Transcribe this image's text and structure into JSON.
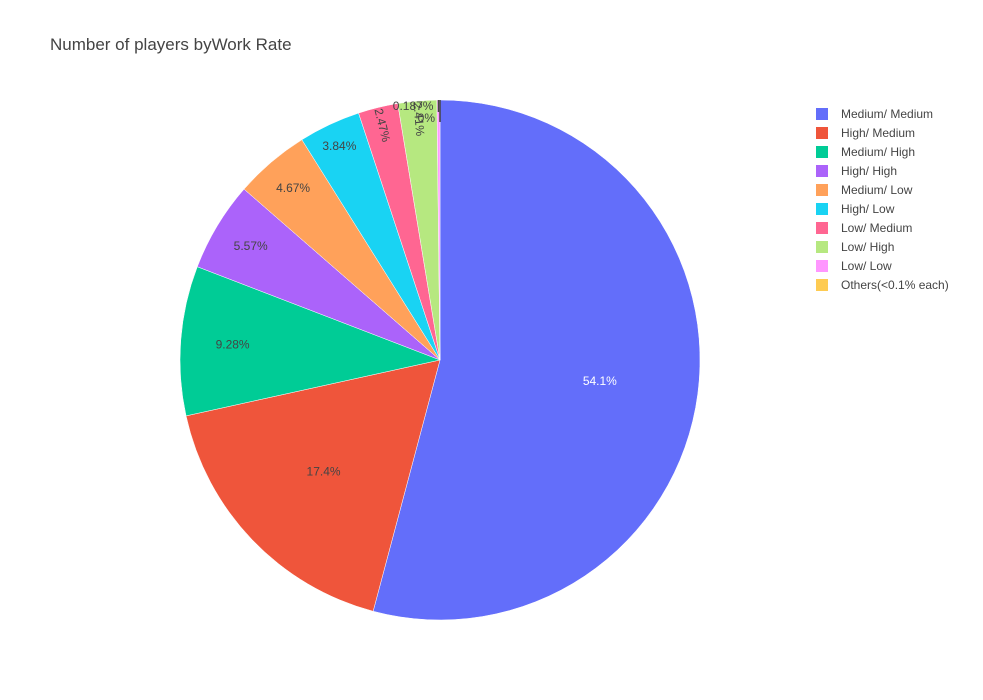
{
  "chart_data": {
    "type": "pie",
    "title": "Number of players byWork Rate",
    "labels": [
      "Medium/ Medium",
      "High/ Medium",
      "Medium/ High",
      "High/ High",
      "Medium/ Low",
      "High/ Low",
      "Low/ Medium",
      "Low/ High",
      "Low/ Low",
      "Others(<0.1% each)"
    ],
    "values": [
      54.1,
      17.4,
      9.28,
      5.57,
      4.67,
      3.84,
      2.47,
      2.41,
      0.187,
      0.0
    ],
    "text_labels": [
      "54.1%",
      "17.4%",
      "9.28%",
      "5.57%",
      "4.67%",
      "3.84%",
      "2.47%",
      "2.41%",
      "0.187%",
      "0%"
    ],
    "colors": [
      "#636efa",
      "#EF553B",
      "#00cc96",
      "#ab63fa",
      "#FFA15A",
      "#19d3f3",
      "#FF6692",
      "#B6E880",
      "#FF97FF",
      "#FECB52"
    ],
    "legend_position": "top-right",
    "direction": "clockwise",
    "start": "12 o'clock"
  }
}
